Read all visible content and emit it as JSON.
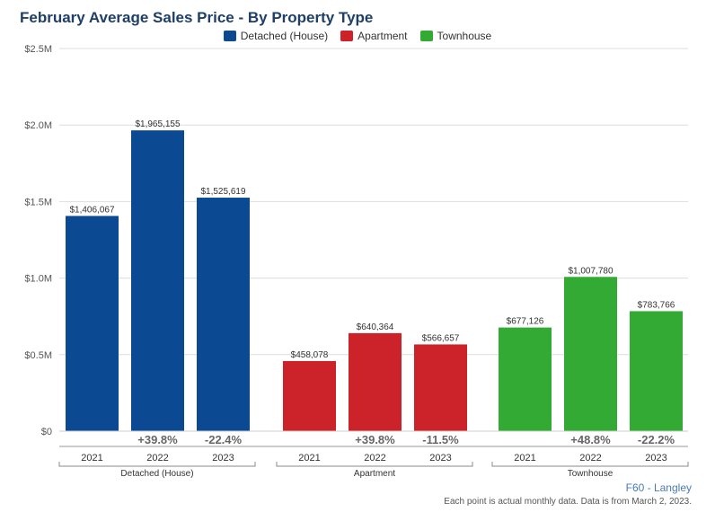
{
  "chart_data": {
    "type": "bar",
    "title": "February Average Sales Price - By Property Type",
    "legend_position": "top-center",
    "grid": true,
    "ylim": [
      0,
      2500000
    ],
    "y_ticks": [
      "$0",
      "$0.5M",
      "$1.0M",
      "$1.5M",
      "$2.0M",
      "$2.5M"
    ],
    "groups": [
      {
        "name": "Detached (House)",
        "color": "#0b4a92",
        "bars": [
          {
            "year": "2021",
            "value": 1406067,
            "label": "$1,406,067",
            "change": ""
          },
          {
            "year": "2022",
            "value": 1965155,
            "label": "$1,965,155",
            "change": "+39.8%"
          },
          {
            "year": "2023",
            "value": 1525619,
            "label": "$1,525,619",
            "change": "-22.4%"
          }
        ]
      },
      {
        "name": "Apartment",
        "color": "#cc2229",
        "bars": [
          {
            "year": "2021",
            "value": 458078,
            "label": "$458,078",
            "change": ""
          },
          {
            "year": "2022",
            "value": 640364,
            "label": "$640,364",
            "change": "+39.8%"
          },
          {
            "year": "2023",
            "value": 566657,
            "label": "$566,657",
            "change": "-11.5%"
          }
        ]
      },
      {
        "name": "Townhouse",
        "color": "#33aa33",
        "bars": [
          {
            "year": "2021",
            "value": 677126,
            "label": "$677,126",
            "change": ""
          },
          {
            "year": "2022",
            "value": 1007780,
            "label": "$1,007,780",
            "change": "+48.8%"
          },
          {
            "year": "2023",
            "value": 783766,
            "label": "$783,766",
            "change": "-22.2%"
          }
        ]
      }
    ]
  },
  "footer": {
    "source": "F60 - Langley",
    "note": "Each point is actual monthly data. Data is from March 2, 2023."
  }
}
